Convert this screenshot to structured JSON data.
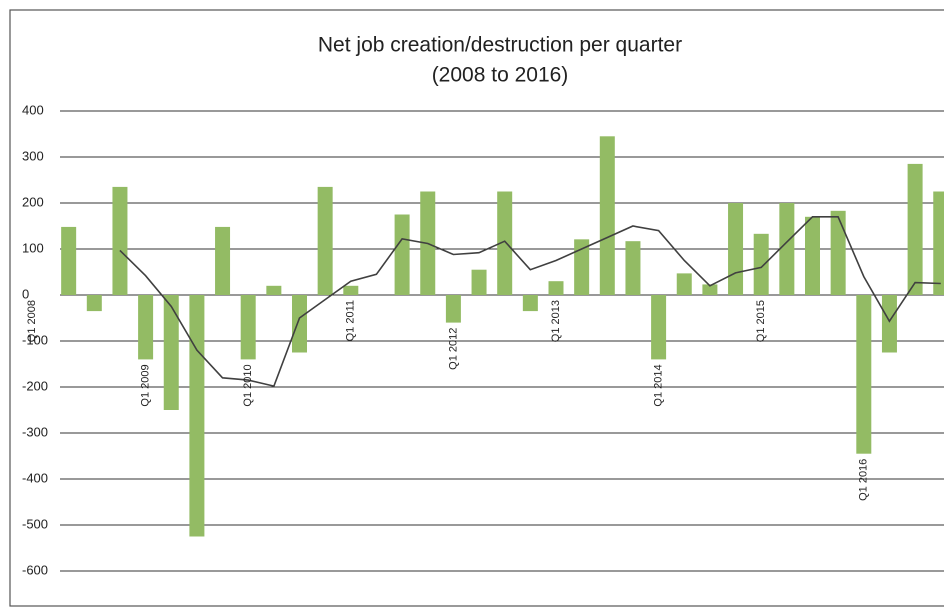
{
  "chart_data": {
    "type": "bar",
    "title": "Net job creation/destruction per quarter",
    "subtitle": "(2008 to 2016)",
    "categories": [
      "Q1 2008",
      null,
      null,
      null,
      "Q1 2009",
      null,
      null,
      null,
      "Q1 2010",
      null,
      null,
      null,
      "Q1 2011",
      null,
      null,
      null,
      "Q1 2012",
      null,
      null,
      null,
      "Q1 2013",
      null,
      null,
      null,
      "Q1 2014",
      null,
      null,
      null,
      "Q1 2015",
      null,
      null,
      null,
      "Q1 2016",
      null,
      null,
      null
    ],
    "series": [
      {
        "type": "bar",
        "color": "#93bb64",
        "values": [
          null,
          148,
          -35,
          235,
          -140,
          -250,
          -525,
          148,
          -140,
          20,
          -125,
          235,
          20,
          0,
          175,
          225,
          -60,
          55,
          225,
          -35,
          30,
          121,
          345,
          117,
          -140,
          47,
          23,
          200,
          133,
          200,
          170,
          183,
          -345,
          -125,
          285,
          225
        ]
      },
      {
        "type": "line",
        "color": "#404040",
        "values": [
          null,
          null,
          null,
          97,
          42,
          -25,
          -120,
          -180,
          -185,
          -198,
          -50,
          -10,
          30,
          45,
          122,
          112,
          88,
          92,
          117,
          55,
          75,
          100,
          125,
          150,
          140,
          75,
          20,
          48,
          60,
          115,
          170,
          170,
          40,
          -57,
          27,
          25
        ]
      }
    ],
    "ylim": [
      -600,
      400
    ],
    "yticks": [
      400,
      300,
      200,
      100,
      0,
      -100,
      -200,
      -300,
      -400,
      -500,
      -600
    ],
    "grid": true
  }
}
